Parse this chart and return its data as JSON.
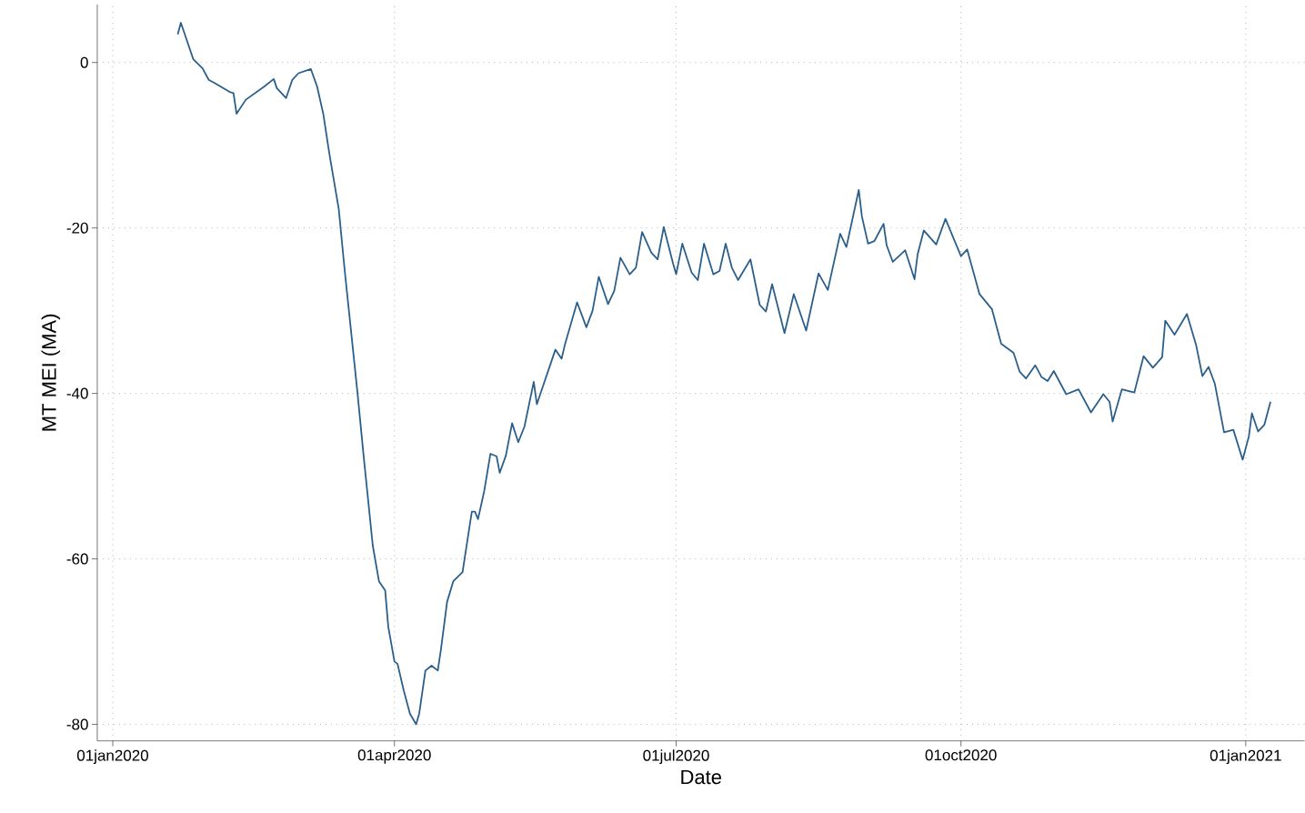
{
  "chart_data": {
    "type": "line",
    "xlabel": "Date",
    "ylabel": "MT MEI (MA)",
    "xlim": [
      "2019-12-27",
      "2021-01-20"
    ],
    "ylim": [
      -82,
      7
    ],
    "xticks": [
      {
        "value": "2020-01-01",
        "label": "01jan2020"
      },
      {
        "value": "2020-04-01",
        "label": "01apr2020"
      },
      {
        "value": "2020-07-01",
        "label": "01jul2020"
      },
      {
        "value": "2020-10-01",
        "label": "01oct2020"
      },
      {
        "value": "2021-01-01",
        "label": "01jan2021"
      }
    ],
    "yticks": [
      -80,
      -60,
      -40,
      -20,
      0
    ],
    "grid": true,
    "marker": "none",
    "line_style": "solid",
    "series": [
      {
        "color": "#2b5f8b",
        "x": [
          "2020-01-22",
          "2020-01-23",
          "2020-01-25",
          "2020-01-27",
          "2020-01-30",
          "2020-02-01",
          "2020-02-03",
          "2020-02-08",
          "2020-02-09",
          "2020-02-10",
          "2020-02-13",
          "2020-02-19",
          "2020-02-22",
          "2020-02-23",
          "2020-02-26",
          "2020-02-28",
          "2020-03-01",
          "2020-03-05",
          "2020-03-07",
          "2020-03-09",
          "2020-03-11",
          "2020-03-14",
          "2020-03-16",
          "2020-03-20",
          "2020-03-22",
          "2020-03-25",
          "2020-03-27",
          "2020-03-29",
          "2020-03-30",
          "2020-04-01",
          "2020-04-02",
          "2020-04-04",
          "2020-04-06",
          "2020-04-08",
          "2020-04-09",
          "2020-04-11",
          "2020-04-13",
          "2020-04-15",
          "2020-04-16",
          "2020-04-18",
          "2020-04-20",
          "2020-04-23",
          "2020-04-25",
          "2020-04-26",
          "2020-04-27",
          "2020-04-28",
          "2020-04-30",
          "2020-05-02",
          "2020-05-04",
          "2020-05-05",
          "2020-05-07",
          "2020-05-09",
          "2020-05-11",
          "2020-05-13",
          "2020-05-16",
          "2020-05-17",
          "2020-05-20",
          "2020-05-23",
          "2020-05-25",
          "2020-05-26",
          "2020-05-30",
          "2020-06-02",
          "2020-06-04",
          "2020-06-06",
          "2020-06-09",
          "2020-06-11",
          "2020-06-13",
          "2020-06-16",
          "2020-06-18",
          "2020-06-20",
          "2020-06-23",
          "2020-06-25",
          "2020-06-27",
          "2020-06-30",
          "2020-07-01",
          "2020-07-03",
          "2020-07-06",
          "2020-07-08",
          "2020-07-10",
          "2020-07-13",
          "2020-07-15",
          "2020-07-17",
          "2020-07-19",
          "2020-07-21",
          "2020-07-25",
          "2020-07-28",
          "2020-07-30",
          "2020-08-01",
          "2020-08-05",
          "2020-08-08",
          "2020-08-12",
          "2020-08-16",
          "2020-08-19",
          "2020-08-23",
          "2020-08-25",
          "2020-08-29",
          "2020-08-30",
          "2020-09-01",
          "2020-09-03",
          "2020-09-06",
          "2020-09-07",
          "2020-09-09",
          "2020-09-13",
          "2020-09-16",
          "2020-09-17",
          "2020-09-19",
          "2020-09-23",
          "2020-09-26",
          "2020-10-01",
          "2020-10-03",
          "2020-10-07",
          "2020-10-11",
          "2020-10-14",
          "2020-10-18",
          "2020-10-20",
          "2020-10-22",
          "2020-10-25",
          "2020-10-27",
          "2020-10-29",
          "2020-10-31",
          "2020-11-04",
          "2020-11-08",
          "2020-11-12",
          "2020-11-16",
          "2020-11-18",
          "2020-11-19",
          "2020-11-22",
          "2020-11-26",
          "2020-11-29",
          "2020-12-02",
          "2020-12-05",
          "2020-12-06",
          "2020-12-09",
          "2020-12-13",
          "2020-12-16",
          "2020-12-18",
          "2020-12-20",
          "2020-12-22",
          "2020-12-25",
          "2020-12-28",
          "2020-12-31",
          "2021-01-02",
          "2021-01-03",
          "2021-01-05",
          "2021-01-07",
          "2021-01-09"
        ],
        "values": [
          3.4,
          4.8,
          2.6,
          0.4,
          -0.7,
          -2.1,
          -2.5,
          -3.6,
          -3.7,
          -6.2,
          -4.5,
          -2.9,
          -2.0,
          -3.1,
          -4.3,
          -2.1,
          -1.3,
          -0.8,
          -2.9,
          -6.2,
          -11.1,
          -17.7,
          -25.4,
          -39.7,
          -47.4,
          -58.4,
          -62.7,
          -63.8,
          -68.2,
          -72.4,
          -72.7,
          -75.9,
          -78.7,
          -80,
          -78.7,
          -73.5,
          -72.9,
          -73.5,
          -71,
          -65.2,
          -62.7,
          -61.6,
          -56.7,
          -54.3,
          -54.3,
          -55.2,
          -51.8,
          -47.3,
          -47.6,
          -49.6,
          -47.5,
          -43.6,
          -45.9,
          -44.0,
          -38.6,
          -41.3,
          -38.0,
          -34.7,
          -35.8,
          -34.2,
          -29.0,
          -32.0,
          -30.0,
          -25.9,
          -29.2,
          -27.6,
          -23.6,
          -25.6,
          -24.8,
          -20.5,
          -23.0,
          -23.8,
          -19.9,
          -24.3,
          -25.6,
          -21.9,
          -25.4,
          -26.3,
          -21.9,
          -25.6,
          -25.2,
          -21.9,
          -24.8,
          -26.3,
          -23.8,
          -29.3,
          -30.1,
          -26.8,
          -32.7,
          -28.0,
          -32.4,
          -25.5,
          -27.5,
          -20.7,
          -22.3,
          -15.4,
          -18.6,
          -21.9,
          -21.6,
          -19.5,
          -22.1,
          -24.1,
          -22.7,
          -26.2,
          -23.2,
          -20.3,
          -22.0,
          -18.9,
          -23.4,
          -22.6,
          -28.0,
          -29.8,
          -34.0,
          -35.1,
          -37.4,
          -38.2,
          -36.6,
          -38.0,
          -38.5,
          -37.3,
          -40.1,
          -39.5,
          -42.3,
          -40.1,
          -41.0,
          -43.4,
          -39.5,
          -39.9,
          -35.5,
          -36.9,
          -35.6,
          -31.2,
          -32.9,
          -30.4,
          -34.2,
          -37.9,
          -36.8,
          -38.8,
          -44.7,
          -44.4,
          -48.0,
          -45.2,
          -42.4,
          -44.6,
          -43.8,
          -41.0
        ]
      }
    ]
  }
}
